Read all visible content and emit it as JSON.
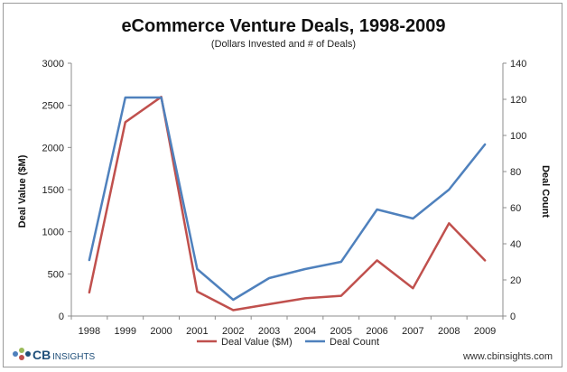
{
  "chart_data": {
    "type": "line",
    "title": "eCommerce Venture Deals, 1998-2009",
    "subtitle": "(Dollars Invested and # of Deals)",
    "categories": [
      "1998",
      "1999",
      "2000",
      "2001",
      "2002",
      "2003",
      "2004",
      "2005",
      "2006",
      "2007",
      "2008",
      "2009"
    ],
    "series": [
      {
        "name": "Deal Value ($M)",
        "axis": "left",
        "color": "#c0504d",
        "values": [
          280,
          2300,
          2600,
          290,
          70,
          140,
          210,
          240,
          660,
          330,
          1100,
          660
        ]
      },
      {
        "name": "Deal Count",
        "axis": "right",
        "color": "#4f81bd",
        "values": [
          31,
          121,
          121,
          26,
          9,
          21,
          26,
          30,
          59,
          54,
          70,
          95
        ]
      }
    ],
    "ylabel": "Deal Value ($M)",
    "y2label": "Deal  Count",
    "ylim": [
      0,
      3000
    ],
    "y2lim": [
      0,
      140
    ],
    "yticks": [
      "0",
      "500",
      "1000",
      "1500",
      "2000",
      "2500",
      "3000"
    ],
    "y2ticks": [
      "0",
      "20",
      "40",
      "60",
      "80",
      "100",
      "120",
      "140"
    ],
    "grid": false,
    "legend_position": "bottom"
  },
  "footer": {
    "logo_cb": "CB",
    "logo_insights": "INSIGHTS",
    "url": "www.cbinsights.com"
  }
}
